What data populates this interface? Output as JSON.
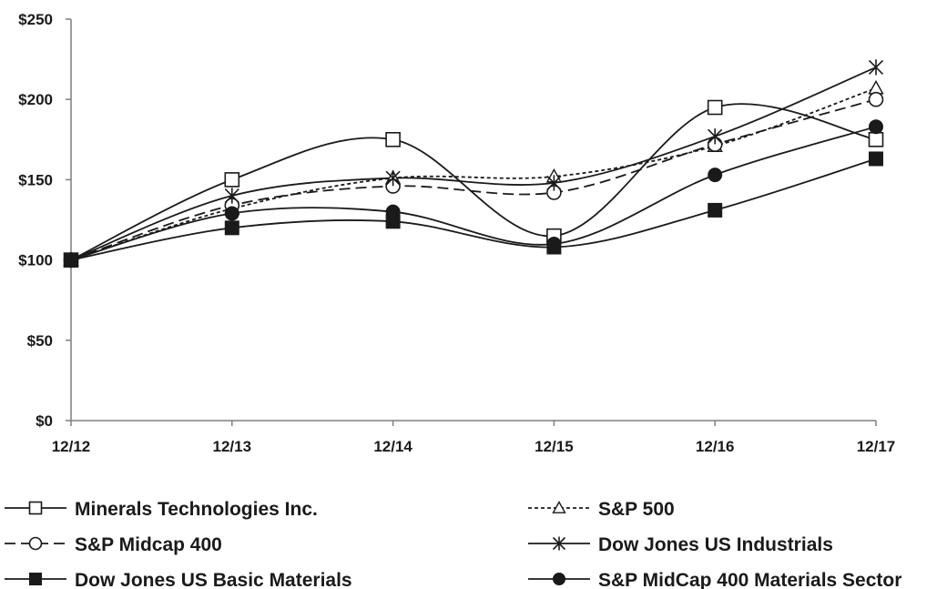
{
  "chart_data": {
    "type": "line",
    "title": "",
    "xlabel": "",
    "ylabel": "",
    "categories": [
      "12/12",
      "12/13",
      "12/14",
      "12/15",
      "12/16",
      "12/17"
    ],
    "ylim": [
      0,
      250
    ],
    "yticks": [
      "$0",
      "$50",
      "$100",
      "$150",
      "$200",
      "$250"
    ],
    "grid": false,
    "legend_position": "bottom",
    "series": [
      {
        "name": "Minerals Technologies Inc.",
        "values": [
          100,
          150,
          175,
          115,
          195,
          175
        ],
        "marker": "open-square",
        "dash": "solid"
      },
      {
        "name": "S&P 500",
        "values": [
          100,
          132,
          151,
          152,
          171,
          207
        ],
        "marker": "open-triangle",
        "dash": "dotted"
      },
      {
        "name": "S&P Midcap 400",
        "values": [
          100,
          134,
          146,
          142,
          172,
          200
        ],
        "marker": "open-circle",
        "dash": "dashed"
      },
      {
        "name": "Dow Jones US Industrials",
        "values": [
          100,
          140,
          151,
          148,
          177,
          220
        ],
        "marker": "asterisk",
        "dash": "solid"
      },
      {
        "name": "Dow Jones US Basic Materials",
        "values": [
          100,
          120,
          124,
          108,
          131,
          163
        ],
        "marker": "filled-square",
        "dash": "solid"
      },
      {
        "name": "S&P MidCap 400 Materials Sector",
        "values": [
          100,
          129,
          130,
          110,
          153,
          183
        ],
        "marker": "filled-circle",
        "dash": "solid"
      }
    ],
    "colors": {
      "line": "#1a1a1a",
      "background": "#ffffff"
    }
  }
}
